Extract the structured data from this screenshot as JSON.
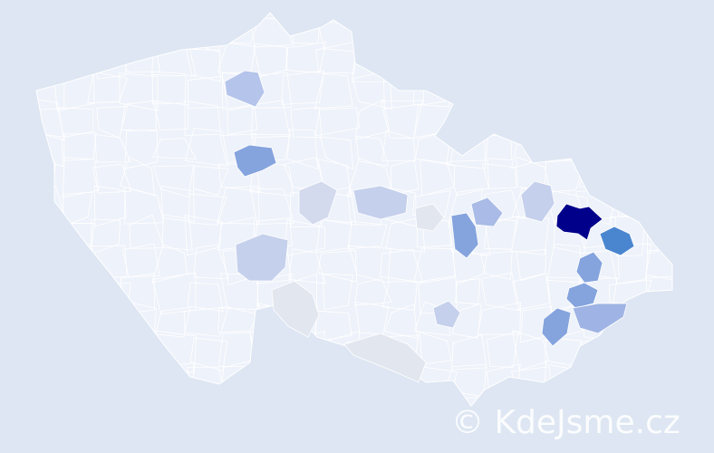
{
  "map": {
    "base_color": "#eef2fa",
    "border_color": "#ffffff",
    "background_color": "#dde6f2",
    "regions": [
      {
        "level": 1.0,
        "color": "#00008b"
      },
      {
        "level": 0.7,
        "color": "#4a86d0"
      },
      {
        "level": 0.5,
        "color": "#85a4de"
      },
      {
        "level": 0.5,
        "color": "#85a4de"
      },
      {
        "level": 0.5,
        "color": "#85a4de"
      },
      {
        "level": 0.5,
        "color": "#85a4de"
      },
      {
        "level": 0.5,
        "color": "#85a4de"
      },
      {
        "level": 0.4,
        "color": "#9fb4e4"
      },
      {
        "level": 0.35,
        "color": "#a9bbe6"
      },
      {
        "level": 0.3,
        "color": "#b4c4ea"
      },
      {
        "level": 0.25,
        "color": "#c5d0ec"
      },
      {
        "level": 0.25,
        "color": "#c5d0ec"
      },
      {
        "level": 0.25,
        "color": "#c5d0ec"
      },
      {
        "level": 0.25,
        "color": "#c5d0ec"
      },
      {
        "level": 0.2,
        "color": "#d3daee"
      },
      {
        "level": 0.1,
        "color": "#e2e6ef"
      },
      {
        "level": 0.1,
        "color": "#e2e6ef"
      },
      {
        "level": 0.1,
        "color": "#e2e6ef"
      }
    ]
  },
  "watermark": "© KdeJsme.cz"
}
